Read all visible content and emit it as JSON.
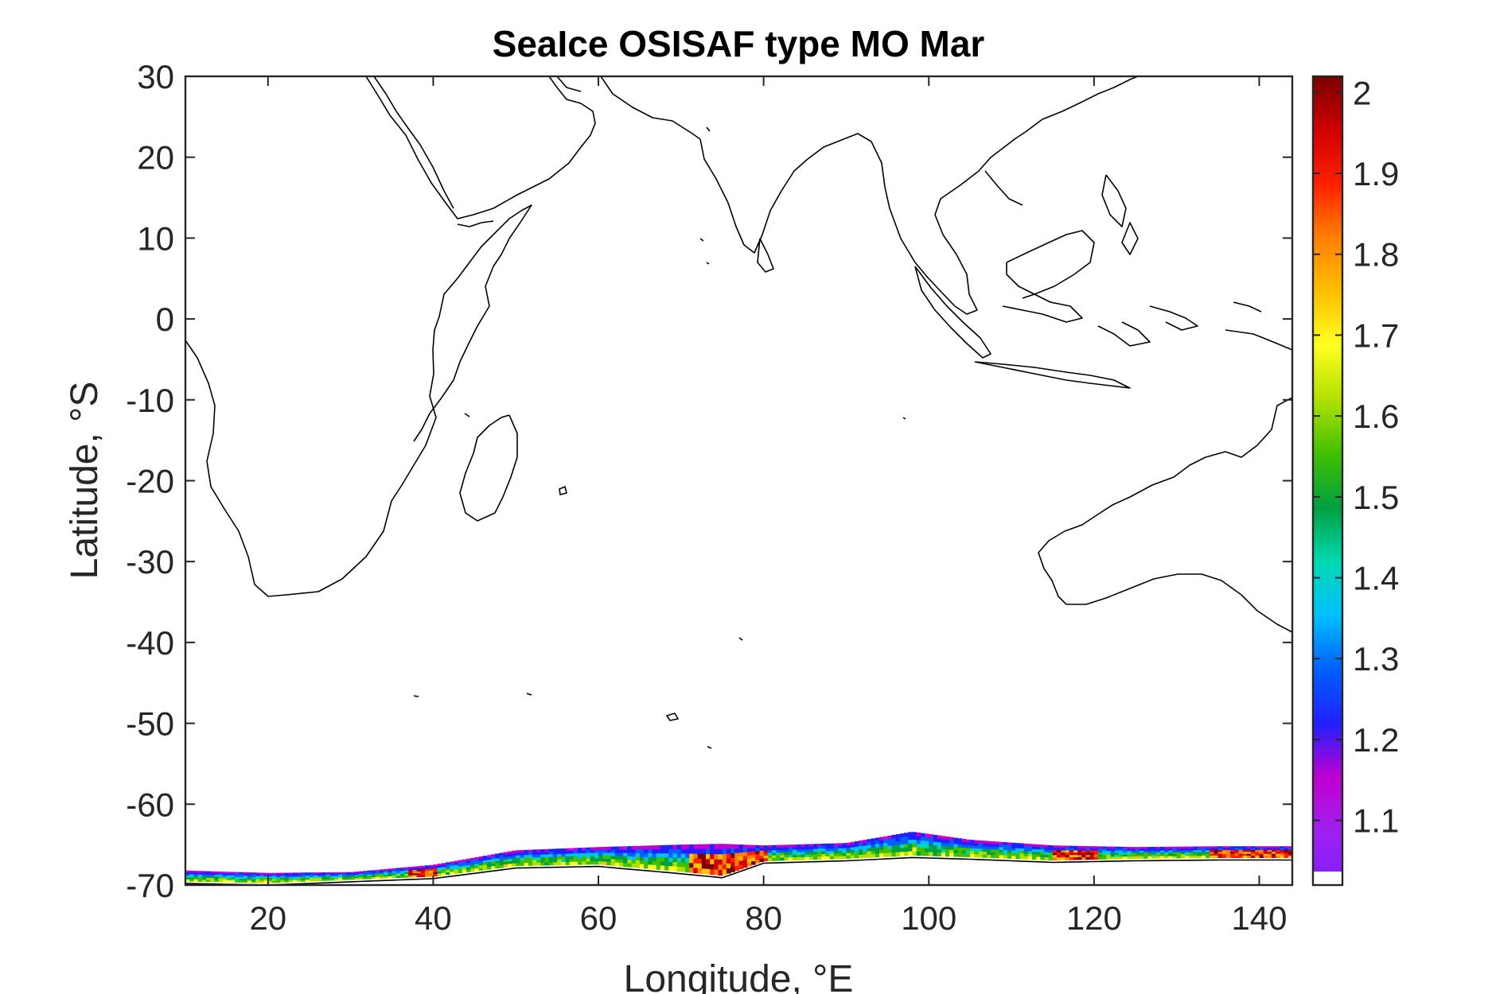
{
  "chart_data": {
    "type": "heatmap",
    "title": "SeaIce OSISAF type MO Mar",
    "xlabel": "Longitude, °E",
    "ylabel": "Latitude, °S",
    "xlim": [
      10,
      144
    ],
    "ylim": [
      -70,
      30
    ],
    "xticks": [
      20,
      40,
      60,
      80,
      100,
      120,
      140
    ],
    "yticks": [
      30,
      20,
      10,
      0,
      -10,
      -20,
      -30,
      -40,
      -50,
      -60,
      -70
    ],
    "colorbar": {
      "range": [
        1.02,
        2.02
      ],
      "ticks": [
        "2",
        "1.9",
        "1.8",
        "1.7",
        "1.6",
        "1.5",
        "1.4",
        "1.3",
        "1.2",
        "1.1"
      ],
      "colormap": [
        "#7f1fff",
        "#a020f0",
        "#c000d0",
        "#2020ff",
        "#0060ff",
        "#00c0ff",
        "#00d8b0",
        "#00a040",
        "#40c000",
        "#b0e000",
        "#ffff20",
        "#ffc000",
        "#ff8000",
        "#ff2000",
        "#d00000",
        "#7a0000"
      ]
    },
    "ice_band": {
      "description_lon": [
        10,
        20,
        30,
        40,
        50,
        60,
        70,
        75,
        80,
        90,
        98,
        105,
        115,
        125,
        135,
        144
      ],
      "edge_lat": [
        -68.2,
        -68.5,
        -68.4,
        -67.5,
        -65.7,
        -65.3,
        -65.0,
        -64.9,
        -65.1,
        -64.8,
        -63.4,
        -64.4,
        -65.1,
        -65.3,
        -65.2,
        -65.2
      ],
      "coast_lat": [
        -69.5,
        -69.7,
        -69.3,
        -68.9,
        -67.6,
        -67.4,
        -68.3,
        -68.8,
        -67.0,
        -66.7,
        -66.3,
        -66.5,
        -66.9,
        -66.7,
        -66.6,
        -66.6
      ],
      "max_value_regions_lon": [
        [
          37,
          40
        ],
        [
          71,
          80
        ],
        [
          115,
          120
        ],
        [
          134,
          144
        ]
      ]
    }
  }
}
